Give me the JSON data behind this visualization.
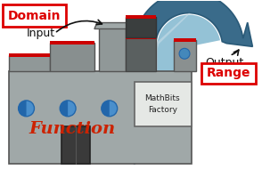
{
  "domain_label": "Domain",
  "input_label": "Input",
  "output_label": "Output",
  "range_label": "Range",
  "function_label": "Function",
  "mathbits_label": "MathBits\nFactory",
  "domain_box_color": "#dd0000",
  "range_box_color": "#dd0000",
  "function_text_color": "#cc2200",
  "bg_color": "#ffffff",
  "fig_width": 2.94,
  "fig_height": 2.0
}
